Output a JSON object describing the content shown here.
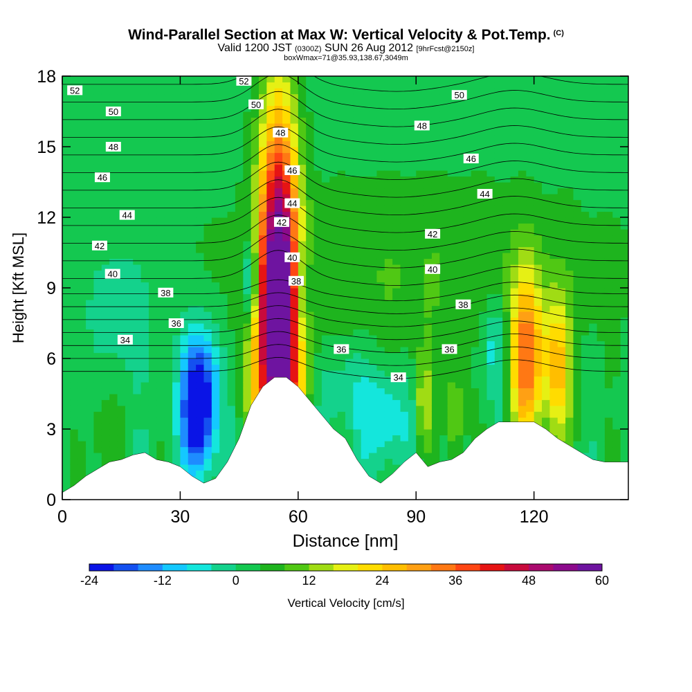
{
  "chart_data": {
    "type": "heatmap",
    "title": "Wind-Parallel Section at Max W: Vertical Velocity & Pot.Temp.",
    "title_mark": "(C)",
    "subtitle": {
      "valid": "Valid 1200 JST",
      "utc": "(0300Z)",
      "date": "SUN 26 Aug 2012",
      "forecast": "[9hrFcst@2150z]"
    },
    "box_info": "boxWmax=71@35.93,138.67,3049m",
    "xlabel": "Distance [nm]",
    "ylabel": "Height [Kft MSL]",
    "xlim": [
      0,
      144
    ],
    "ylim": [
      0,
      18
    ],
    "x_ticks": [
      0,
      30,
      60,
      90,
      120
    ],
    "y_ticks": [
      0,
      3,
      6,
      9,
      12,
      15,
      18
    ],
    "colorbar": {
      "label": "Vertical Velocity [cm/s]",
      "ticks": [
        -24,
        -12,
        0,
        12,
        24,
        36,
        48,
        60
      ],
      "range": [
        -24,
        60
      ],
      "colors": [
        "#0a14e6",
        "#1450f0",
        "#1e8cff",
        "#14c8ff",
        "#14e6dc",
        "#14d28c",
        "#14c850",
        "#1eb41e",
        "#50c814",
        "#a0dc14",
        "#e6f014",
        "#ffdc00",
        "#ffbe00",
        "#ffa014",
        "#ff7814",
        "#ff4614",
        "#e61414",
        "#c80a3c",
        "#aa0a6e",
        "#8c0a8c",
        "#6e14a0"
      ]
    },
    "terrain": [
      {
        "x": 0,
        "h": 0.3
      },
      {
        "x": 3,
        "h": 0.6
      },
      {
        "x": 6,
        "h": 1.0
      },
      {
        "x": 9,
        "h": 1.3
      },
      {
        "x": 12,
        "h": 1.6
      },
      {
        "x": 15,
        "h": 1.7
      },
      {
        "x": 18,
        "h": 1.9
      },
      {
        "x": 21,
        "h": 2.0
      },
      {
        "x": 24,
        "h": 1.7
      },
      {
        "x": 27,
        "h": 1.6
      },
      {
        "x": 30,
        "h": 1.4
      },
      {
        "x": 33,
        "h": 1.0
      },
      {
        "x": 36,
        "h": 0.7
      },
      {
        "x": 39,
        "h": 0.9
      },
      {
        "x": 42,
        "h": 1.6
      },
      {
        "x": 45,
        "h": 2.6
      },
      {
        "x": 48,
        "h": 4.0
      },
      {
        "x": 51,
        "h": 4.8
      },
      {
        "x": 54,
        "h": 5.2
      },
      {
        "x": 57,
        "h": 5.2
      },
      {
        "x": 60,
        "h": 4.8
      },
      {
        "x": 63,
        "h": 4.2
      },
      {
        "x": 66,
        "h": 3.6
      },
      {
        "x": 69,
        "h": 3.0
      },
      {
        "x": 72,
        "h": 2.6
      },
      {
        "x": 75,
        "h": 1.7
      },
      {
        "x": 78,
        "h": 1.0
      },
      {
        "x": 81,
        "h": 0.7
      },
      {
        "x": 84,
        "h": 1.1
      },
      {
        "x": 87,
        "h": 1.6
      },
      {
        "x": 90,
        "h": 2.0
      },
      {
        "x": 93,
        "h": 1.4
      },
      {
        "x": 96,
        "h": 1.6
      },
      {
        "x": 99,
        "h": 1.7
      },
      {
        "x": 102,
        "h": 2.0
      },
      {
        "x": 105,
        "h": 2.6
      },
      {
        "x": 108,
        "h": 3.0
      },
      {
        "x": 111,
        "h": 3.3
      },
      {
        "x": 114,
        "h": 3.3
      },
      {
        "x": 117,
        "h": 3.3
      },
      {
        "x": 120,
        "h": 3.3
      },
      {
        "x": 123,
        "h": 3.0
      },
      {
        "x": 126,
        "h": 2.6
      },
      {
        "x": 129,
        "h": 2.3
      },
      {
        "x": 132,
        "h": 2.0
      },
      {
        "x": 135,
        "h": 1.7
      },
      {
        "x": 138,
        "h": 1.6
      },
      {
        "x": 141,
        "h": 1.6
      },
      {
        "x": 144,
        "h": 1.6
      }
    ],
    "w_features": [
      {
        "x": 55,
        "h": 9.0,
        "sx": 3.5,
        "sy": 5.5,
        "w": 58
      },
      {
        "x": 52,
        "h": 6.0,
        "sx": 4.0,
        "sy": 3.0,
        "w": 14
      },
      {
        "x": 58,
        "h": 6.5,
        "sx": 3.5,
        "sy": 3.0,
        "w": 10
      },
      {
        "x": 48,
        "h": 9.2,
        "sx": 1.4,
        "sy": 1.4,
        "w": -20
      },
      {
        "x": 61,
        "h": 8.8,
        "sx": 1.6,
        "sy": 1.6,
        "w": -14
      },
      {
        "x": 35,
        "h": 4.5,
        "sx": 3.5,
        "sy": 2.0,
        "w": -26
      },
      {
        "x": 34,
        "h": 3.0,
        "sx": 2.5,
        "sy": 1.5,
        "w": -10
      },
      {
        "x": 118,
        "h": 6.0,
        "sx": 3.0,
        "sy": 2.5,
        "w": 32
      },
      {
        "x": 126,
        "h": 5.5,
        "sx": 2.5,
        "sy": 2.2,
        "w": 22
      },
      {
        "x": 110,
        "h": 6.5,
        "sx": 3.0,
        "sy": 1.5,
        "w": -10
      },
      {
        "x": 82,
        "h": 3.5,
        "sx": 5.0,
        "sy": 1.5,
        "w": -10
      },
      {
        "x": 72,
        "h": 5.0,
        "sx": 5.0,
        "sy": 1.5,
        "w": -6
      },
      {
        "x": 92,
        "h": 4.0,
        "sx": 1.5,
        "sy": 1.5,
        "w": 14
      },
      {
        "x": 100,
        "h": 3.5,
        "sx": 1.5,
        "sy": 1.3,
        "w": 12
      },
      {
        "x": 90,
        "h": 9.5,
        "sx": 40,
        "sy": 3.0,
        "w": 6
      },
      {
        "x": 15,
        "h": 8.0,
        "sx": 6.0,
        "sy": 2.0,
        "w": -6
      },
      {
        "x": 10,
        "h": 2.5,
        "sx": 3.0,
        "sy": 2.0,
        "w": 5
      }
    ],
    "theta_levels": [
      33,
      34,
      35,
      36,
      37,
      38,
      39,
      40,
      41,
      42,
      43,
      44,
      45,
      46,
      47,
      48,
      49,
      50,
      51,
      52
    ],
    "theta_labels": [
      {
        "text": "52",
        "x": 3.2,
        "h": 17.4
      },
      {
        "text": "52",
        "x": 46.2,
        "h": 17.8
      },
      {
        "text": "50",
        "x": 13.0,
        "h": 16.5
      },
      {
        "text": "50",
        "x": 49.3,
        "h": 16.8
      },
      {
        "text": "50",
        "x": 101.0,
        "h": 17.2
      },
      {
        "text": "48",
        "x": 13.0,
        "h": 15.0
      },
      {
        "text": "48",
        "x": 55.5,
        "h": 15.6
      },
      {
        "text": "48",
        "x": 91.5,
        "h": 15.9
      },
      {
        "text": "46",
        "x": 10.2,
        "h": 13.7
      },
      {
        "text": "46",
        "x": 58.5,
        "h": 14.0
      },
      {
        "text": "46",
        "x": 104.0,
        "h": 14.5
      },
      {
        "text": "44",
        "x": 16.5,
        "h": 12.1
      },
      {
        "text": "44",
        "x": 58.5,
        "h": 12.6
      },
      {
        "text": "44",
        "x": 107.5,
        "h": 13.0
      },
      {
        "text": "42",
        "x": 9.5,
        "h": 10.8
      },
      {
        "text": "42",
        "x": 55.8,
        "h": 11.8
      },
      {
        "text": "42",
        "x": 94.2,
        "h": 11.3
      },
      {
        "text": "40",
        "x": 12.8,
        "h": 9.6
      },
      {
        "text": "40",
        "x": 58.5,
        "h": 10.3
      },
      {
        "text": "40",
        "x": 94.2,
        "h": 9.8
      },
      {
        "text": "38",
        "x": 26.3,
        "h": 8.8
      },
      {
        "text": "38",
        "x": 59.5,
        "h": 9.3
      },
      {
        "text": "38",
        "x": 102.0,
        "h": 8.3
      },
      {
        "text": "36",
        "x": 29.0,
        "h": 7.5
      },
      {
        "text": "36",
        "x": 71.0,
        "h": 6.4
      },
      {
        "text": "36",
        "x": 98.5,
        "h": 6.4
      },
      {
        "text": "34",
        "x": 16.0,
        "h": 6.8
      },
      {
        "text": "34",
        "x": 85.5,
        "h": 5.2
      }
    ]
  }
}
